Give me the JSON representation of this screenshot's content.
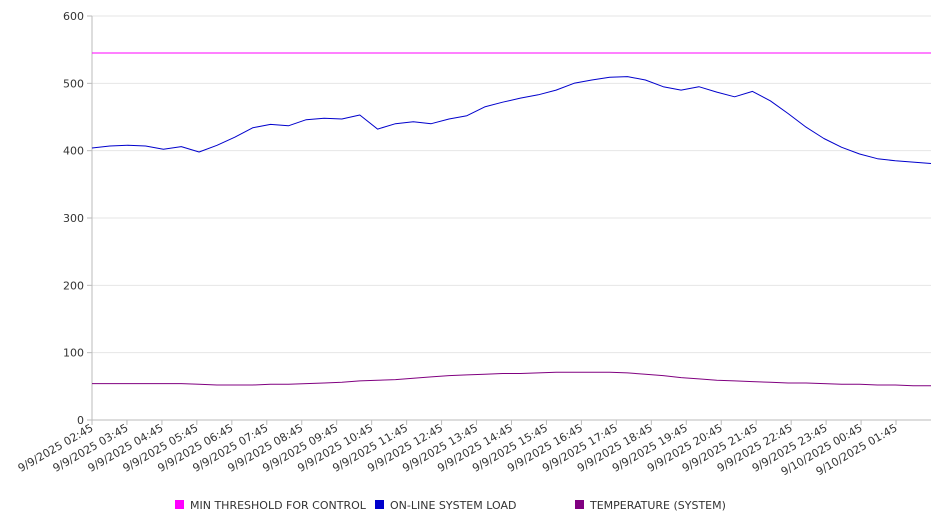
{
  "chart_data": {
    "type": "line",
    "title": "",
    "xlabel": "",
    "ylabel": "",
    "ylim": [
      0,
      600
    ],
    "y_ticks": [
      "0",
      "100",
      "200",
      "300",
      "400",
      "500",
      "600"
    ],
    "x_ticks": [
      "9/9/2025 02:45",
      "9/9/2025 03:45",
      "9/9/2025 04:45",
      "9/9/2025 05:45",
      "9/9/2025 06:45",
      "9/9/2025 07:45",
      "9/9/2025 08:45",
      "9/9/2025 09:45",
      "9/9/2025 10:45",
      "9/9/2025 11:45",
      "9/9/2025 12:45",
      "9/9/2025 13:45",
      "9/9/2025 14:45",
      "9/9/2025 15:45",
      "9/9/2025 16:45",
      "9/9/2025 17:45",
      "9/9/2025 18:45",
      "9/9/2025 19:45",
      "9/9/2025 20:45",
      "9/9/2025 21:45",
      "9/9/2025 22:45",
      "9/9/2025 23:45",
      "9/10/2025 00:45",
      "9/10/2025 01:45"
    ],
    "x": [
      "9/9/2025 02:45",
      "9/9/2025 03:15",
      "9/9/2025 03:45",
      "9/9/2025 04:15",
      "9/9/2025 04:45",
      "9/9/2025 05:15",
      "9/9/2025 05:45",
      "9/9/2025 06:15",
      "9/9/2025 06:45",
      "9/9/2025 07:15",
      "9/9/2025 07:45",
      "9/9/2025 08:15",
      "9/9/2025 08:45",
      "9/9/2025 09:15",
      "9/9/2025 09:45",
      "9/9/2025 10:15",
      "9/9/2025 10:45",
      "9/9/2025 11:15",
      "9/9/2025 11:45",
      "9/9/2025 12:15",
      "9/9/2025 12:45",
      "9/9/2025 13:15",
      "9/9/2025 13:45",
      "9/9/2025 14:15",
      "9/9/2025 14:45",
      "9/9/2025 15:15",
      "9/9/2025 15:45",
      "9/9/2025 16:15",
      "9/9/2025 16:45",
      "9/9/2025 17:15",
      "9/9/2025 17:45",
      "9/9/2025 18:15",
      "9/9/2025 18:45",
      "9/9/2025 19:15",
      "9/9/2025 19:45",
      "9/9/2025 20:15",
      "9/9/2025 20:45",
      "9/9/2025 21:15",
      "9/9/2025 21:45",
      "9/9/2025 22:15",
      "9/9/2025 22:45",
      "9/9/2025 23:15",
      "9/9/2025 23:45",
      "9/10/2025 00:15",
      "9/10/2025 00:45",
      "9/10/2025 01:15",
      "9/10/2025 01:45",
      "9/10/2025 02:15"
    ],
    "series": [
      {
        "name": "MIN THRESHOLD FOR CONTROL",
        "color": "#ff00ff",
        "values": [
          545,
          545,
          545,
          545,
          545,
          545,
          545,
          545,
          545,
          545,
          545,
          545,
          545,
          545,
          545,
          545,
          545,
          545,
          545,
          545,
          545,
          545,
          545,
          545,
          545,
          545,
          545,
          545,
          545,
          545,
          545,
          545,
          545,
          545,
          545,
          545,
          545,
          545,
          545,
          545,
          545,
          545,
          545,
          545,
          545,
          545,
          545,
          545
        ]
      },
      {
        "name": "ON-LINE SYSTEM LOAD",
        "color": "#0000cc",
        "values": [
          404,
          407,
          408,
          407,
          402,
          406,
          398,
          408,
          420,
          434,
          439,
          437,
          446,
          448,
          447,
          453,
          432,
          440,
          443,
          440,
          447,
          452,
          465,
          472,
          478,
          483,
          490,
          500,
          505,
          509,
          510,
          505,
          495,
          490,
          495,
          487,
          480,
          488,
          474,
          455,
          435,
          418,
          405,
          395,
          388,
          385,
          383,
          381
        ]
      },
      {
        "name": "TEMPERATURE (SYSTEM)",
        "color": "#800080",
        "values": [
          54,
          54,
          54,
          54,
          54,
          54,
          53,
          52,
          52,
          52,
          53,
          53,
          54,
          55,
          56,
          58,
          59,
          60,
          62,
          64,
          66,
          67,
          68,
          69,
          69,
          70,
          71,
          71,
          71,
          71,
          70,
          68,
          66,
          63,
          61,
          59,
          58,
          57,
          56,
          55,
          55,
          54,
          53,
          53,
          52,
          52,
          51,
          51
        ]
      }
    ],
    "grid": true,
    "legend_position": "bottom"
  }
}
